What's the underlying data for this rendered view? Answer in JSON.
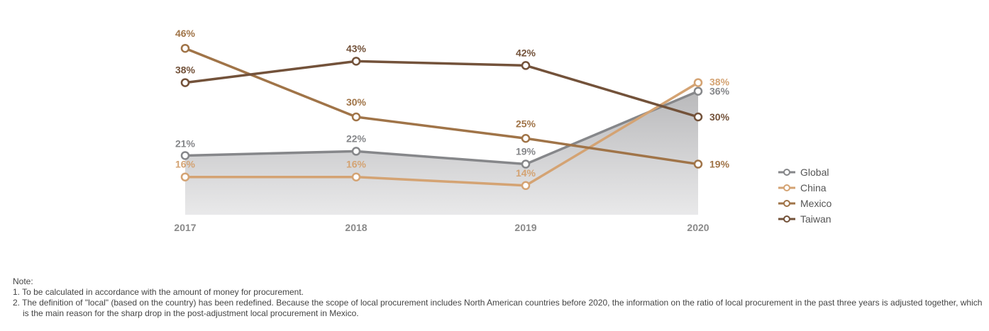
{
  "chart_data": {
    "type": "line",
    "categories": [
      "2017",
      "2018",
      "2019",
      "2020"
    ],
    "ylim": [
      0,
      50
    ],
    "series": [
      {
        "name": "Global",
        "values": [
          21,
          22,
          19,
          36
        ],
        "color": "#86878a",
        "area": true
      },
      {
        "name": "China",
        "values": [
          16,
          16,
          14,
          38
        ],
        "color": "#d4a373"
      },
      {
        "name": "Mexico",
        "values": [
          46,
          30,
          25,
          19
        ],
        "color": "#a07448"
      },
      {
        "name": "Taiwan",
        "values": [
          38,
          43,
          42,
          30
        ],
        "color": "#73523a"
      }
    ],
    "data_labels": [
      [
        "21%",
        "22%",
        "19%",
        "36%"
      ],
      [
        "16%",
        "16%",
        "14%",
        "38%"
      ],
      [
        "46%",
        "30%",
        "25%",
        "19%"
      ],
      [
        "38%",
        "43%",
        "42%",
        "30%"
      ]
    ],
    "legend_position": "right",
    "grid": false
  },
  "notes": {
    "title": "Note:",
    "lines": [
      "1. To be calculated in accordance with the amount of money for procurement.",
      "2. The definition of \"local\" (based on the country) has been redefined. Because the scope of local procurement includes North American countries before 2020, the information on the ratio of local procurement in the past three years is adjusted together, which is the main reason for the sharp drop in the post-adjustment local procurement in Mexico."
    ]
  }
}
